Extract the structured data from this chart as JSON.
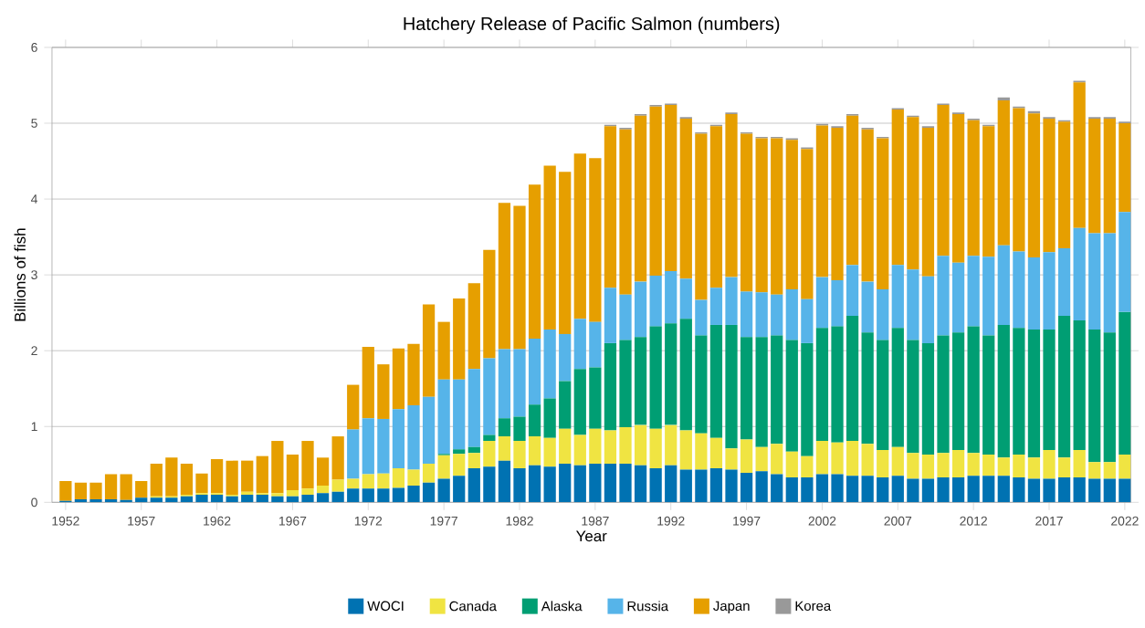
{
  "chart_data": {
    "type": "bar",
    "stacked": true,
    "title": "Hatchery Release of Pacific Salmon (numbers)",
    "xlabel": "Year",
    "ylabel": "Billions of fish",
    "x": [
      1952,
      1953,
      1954,
      1955,
      1956,
      1957,
      1958,
      1959,
      1960,
      1961,
      1962,
      1963,
      1964,
      1965,
      1966,
      1967,
      1968,
      1969,
      1970,
      1971,
      1972,
      1973,
      1974,
      1975,
      1976,
      1977,
      1978,
      1979,
      1980,
      1981,
      1982,
      1983,
      1984,
      1985,
      1986,
      1987,
      1988,
      1989,
      1990,
      1991,
      1992,
      1993,
      1994,
      1995,
      1996,
      1997,
      1998,
      1999,
      2000,
      2001,
      2002,
      2003,
      2004,
      2005,
      2006,
      2007,
      2008,
      2009,
      2010,
      2011,
      2012,
      2013,
      2014,
      2015,
      2016,
      2017,
      2018,
      2019,
      2020,
      2021,
      2022
    ],
    "series": [
      {
        "name": "WOCI",
        "color": "#0072b2",
        "values": [
          0.02,
          0.04,
          0.04,
          0.04,
          0.03,
          0.06,
          0.06,
          0.06,
          0.08,
          0.1,
          0.1,
          0.08,
          0.1,
          0.1,
          0.08,
          0.08,
          0.1,
          0.12,
          0.14,
          0.18,
          0.18,
          0.18,
          0.19,
          0.22,
          0.26,
          0.31,
          0.35,
          0.45,
          0.47,
          0.55,
          0.45,
          0.49,
          0.47,
          0.51,
          0.49,
          0.51,
          0.51,
          0.51,
          0.49,
          0.45,
          0.49,
          0.43,
          0.43,
          0.45,
          0.43,
          0.39,
          0.41,
          0.37,
          0.33,
          0.33,
          0.37,
          0.37,
          0.35,
          0.35,
          0.33,
          0.35,
          0.31,
          0.31,
          0.33,
          0.33,
          0.35,
          0.35,
          0.35,
          0.33,
          0.31,
          0.31,
          0.33,
          0.33,
          0.31,
          0.31,
          0.31
        ]
      },
      {
        "name": "Canada",
        "color": "#f0e442",
        "values": [
          0,
          0,
          0,
          0,
          0,
          0,
          0.02,
          0.02,
          0.02,
          0.02,
          0.02,
          0.02,
          0.04,
          0.02,
          0.04,
          0.08,
          0.08,
          0.1,
          0.16,
          0.13,
          0.19,
          0.2,
          0.26,
          0.21,
          0.25,
          0.31,
          0.29,
          0.2,
          0.34,
          0.32,
          0.36,
          0.38,
          0.38,
          0.46,
          0.4,
          0.46,
          0.44,
          0.48,
          0.53,
          0.52,
          0.53,
          0.52,
          0.48,
          0.4,
          0.28,
          0.44,
          0.32,
          0.4,
          0.34,
          0.28,
          0.44,
          0.42,
          0.46,
          0.42,
          0.36,
          0.38,
          0.34,
          0.32,
          0.32,
          0.36,
          0.3,
          0.28,
          0.24,
          0.3,
          0.28,
          0.38,
          0.26,
          0.36,
          0.22,
          0.22,
          0.32
        ]
      },
      {
        "name": "Alaska",
        "color": "#009e73",
        "values": [
          0,
          0,
          0,
          0,
          0,
          0,
          0,
          0,
          0,
          0,
          0,
          0,
          0,
          0,
          0,
          0,
          0,
          0,
          0,
          0,
          0,
          0,
          0,
          0,
          0,
          0.02,
          0.06,
          0.08,
          0.08,
          0.24,
          0.32,
          0.42,
          0.52,
          0.63,
          0.87,
          0.81,
          1.15,
          1.15,
          1.16,
          1.35,
          1.34,
          1.47,
          1.29,
          1.49,
          1.63,
          1.35,
          1.45,
          1.43,
          1.47,
          1.49,
          1.49,
          1.53,
          1.65,
          1.47,
          1.45,
          1.57,
          1.49,
          1.47,
          1.55,
          1.55,
          1.67,
          1.57,
          1.75,
          1.67,
          1.69,
          1.59,
          1.87,
          1.71,
          1.75,
          1.71,
          1.88
        ]
      },
      {
        "name": "Russia",
        "color": "#56b4e9",
        "values": [
          0,
          0,
          0,
          0,
          0,
          0,
          0,
          0,
          0,
          0,
          0,
          0,
          0,
          0,
          0,
          0,
          0,
          0,
          0,
          0.65,
          0.74,
          0.72,
          0.78,
          0.85,
          0.88,
          0.98,
          0.92,
          1.03,
          1.01,
          0.91,
          0.89,
          0.87,
          0.91,
          0.62,
          0.66,
          0.6,
          0.73,
          0.6,
          0.73,
          0.67,
          0.69,
          0.53,
          0.47,
          0.49,
          0.63,
          0.6,
          0.59,
          0.54,
          0.67,
          0.58,
          0.67,
          0.61,
          0.67,
          0.67,
          0.67,
          0.83,
          0.93,
          0.88,
          1.05,
          0.92,
          0.93,
          1.04,
          1.05,
          1.01,
          0.95,
          1.02,
          0.89,
          1.22,
          1.27,
          1.31,
          1.32
        ]
      },
      {
        "name": "Japan",
        "color": "#e69f00",
        "values": [
          0.26,
          0.22,
          0.22,
          0.33,
          0.34,
          0.22,
          0.43,
          0.51,
          0.41,
          0.26,
          0.45,
          0.45,
          0.41,
          0.49,
          0.69,
          0.47,
          0.63,
          0.37,
          0.57,
          0.59,
          0.94,
          0.72,
          0.8,
          0.81,
          1.22,
          0.76,
          1.07,
          1.13,
          1.43,
          1.93,
          1.89,
          2.03,
          2.16,
          2.14,
          2.18,
          2.16,
          2.13,
          2.18,
          2.19,
          2.23,
          2.19,
          2.11,
          2.19,
          2.13,
          2.15,
          2.08,
          2.03,
          2.06,
          1.97,
          1.98,
          2.0,
          2.01,
          1.97,
          2.01,
          1.99,
          2.05,
          2.01,
          1.96,
          1.99,
          1.96,
          1.79,
          1.72,
          1.91,
          1.89,
          1.9,
          1.76,
          1.67,
          1.92,
          1.51,
          1.51,
          1.17
        ]
      },
      {
        "name": "Korea",
        "color": "#999999",
        "values": [
          0,
          0,
          0,
          0,
          0,
          0,
          0,
          0,
          0,
          0,
          0,
          0,
          0,
          0,
          0,
          0,
          0,
          0,
          0,
          0,
          0,
          0,
          0,
          0,
          0,
          0,
          0,
          0,
          0,
          0,
          0,
          0,
          0,
          0,
          0,
          0,
          0.02,
          0.02,
          0.02,
          0.02,
          0.02,
          0.02,
          0.02,
          0.02,
          0.02,
          0.02,
          0.02,
          0.02,
          0.02,
          0.02,
          0.02,
          0.02,
          0.02,
          0.02,
          0.02,
          0.02,
          0.02,
          0.02,
          0.02,
          0.02,
          0.02,
          0.02,
          0.04,
          0.02,
          0.03,
          0.02,
          0.02,
          0.02,
          0.02,
          0.02,
          0.02
        ]
      }
    ],
    "xlim": [
      1951.1,
      2022.4
    ],
    "xticks": [
      1952,
      1957,
      1962,
      1967,
      1972,
      1977,
      1982,
      1987,
      1992,
      1997,
      2002,
      2007,
      2012,
      2017,
      2022
    ],
    "ylim": [
      0,
      6
    ],
    "yticks": [
      0,
      1,
      2,
      3,
      4,
      5,
      6
    ],
    "grid": "y",
    "legend": "bottom"
  }
}
